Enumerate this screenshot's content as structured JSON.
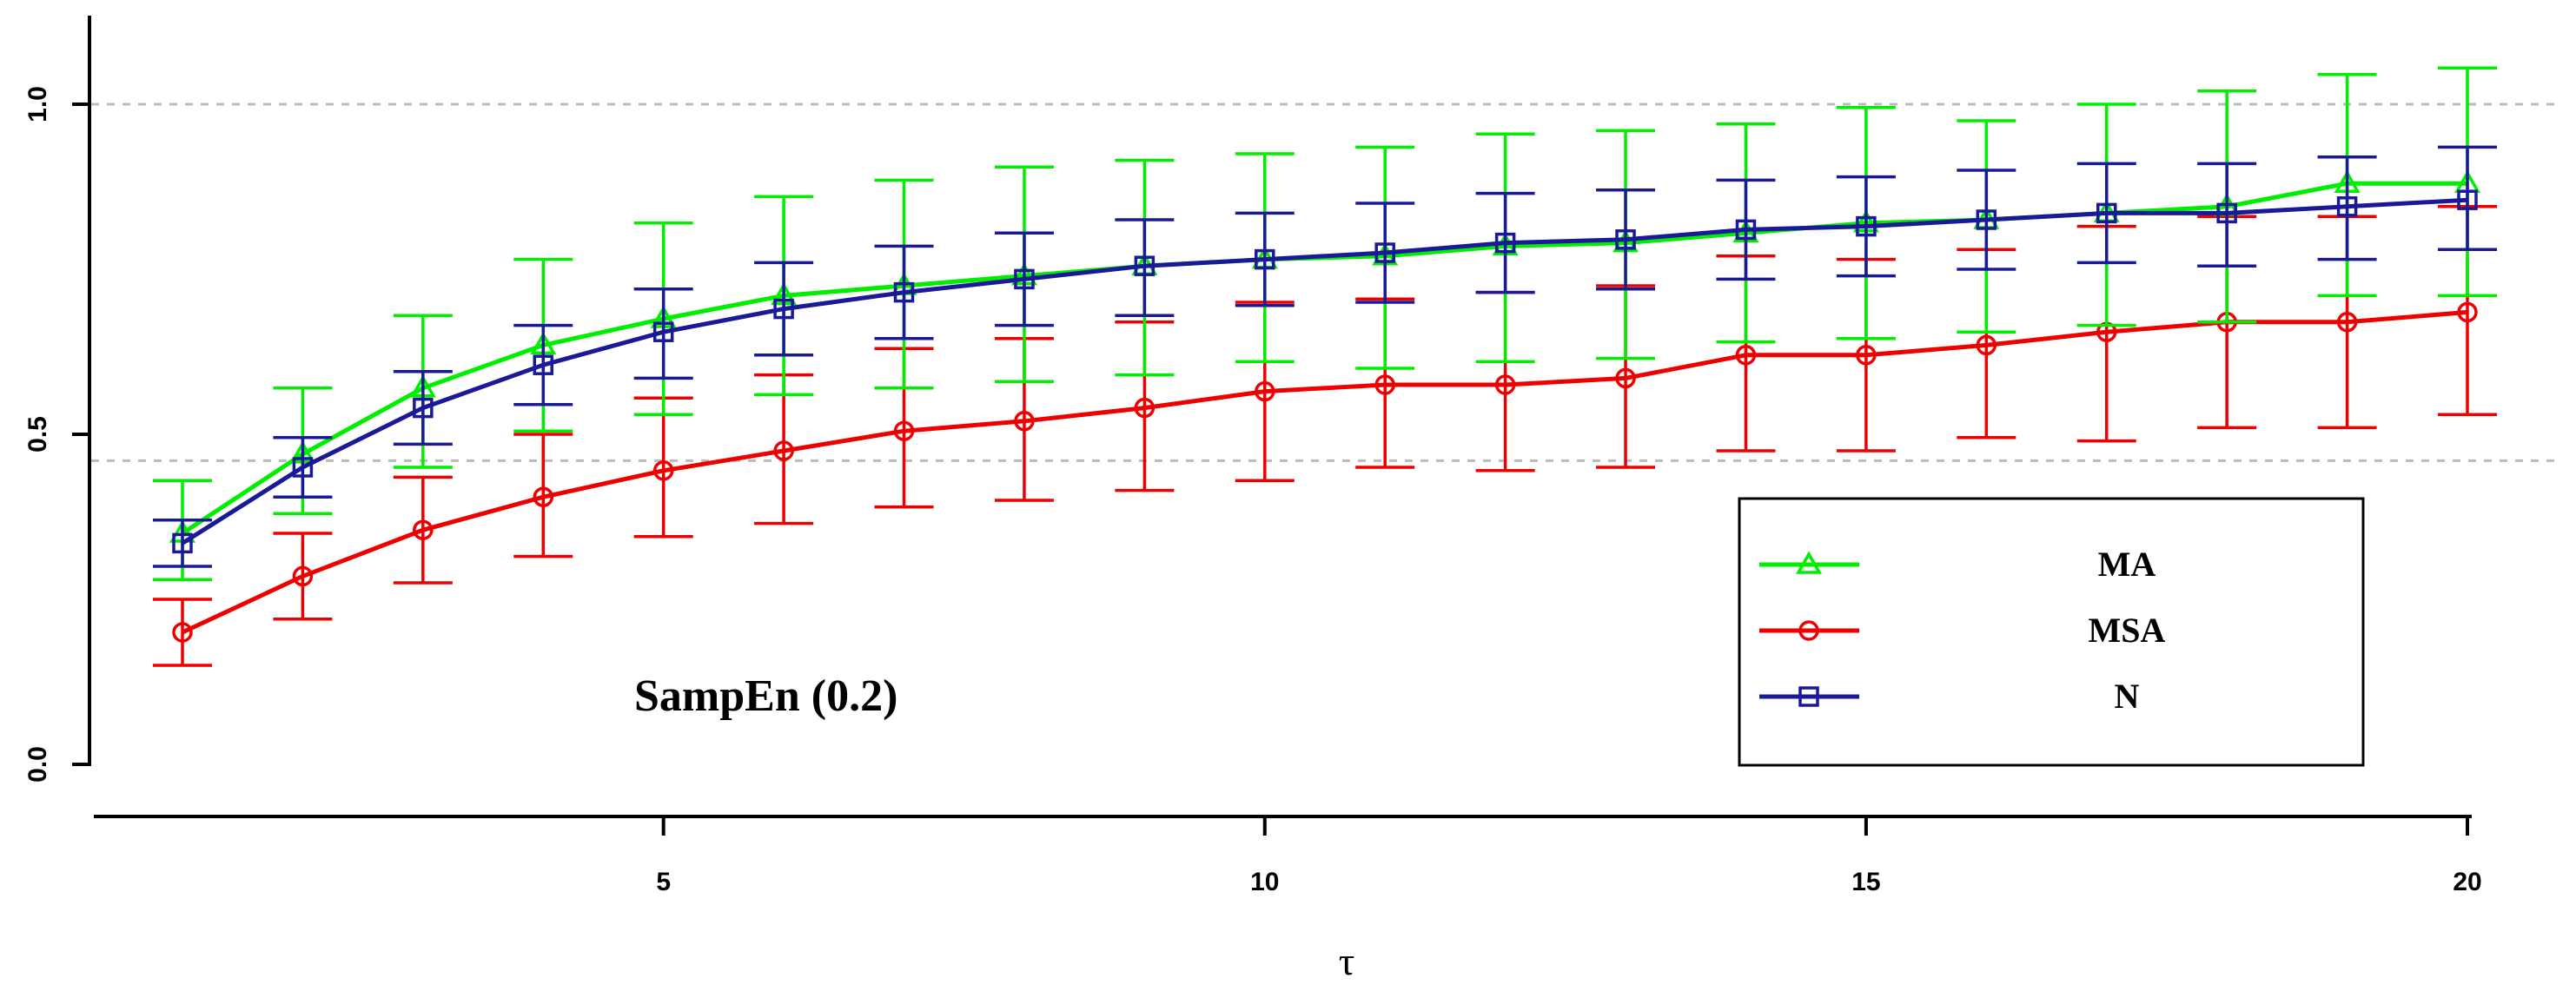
{
  "chart_data": {
    "type": "line",
    "title": "",
    "annotation": "SampEn (0.2)",
    "xlabel": "τ",
    "ylabel": "",
    "xlim": [
      0.2,
      20.2
    ],
    "ylim": [
      0.0,
      1.15
    ],
    "x_ticks": [
      "5",
      "10",
      "15",
      "20"
    ],
    "y_ticks": [
      "0.0",
      "0.5",
      "1.0"
    ],
    "reference_lines": [
      1.0,
      0.46
    ],
    "legend_position": "bottom-right",
    "x": [
      1,
      2,
      3,
      4,
      5,
      6,
      7,
      8,
      9,
      10,
      11,
      12,
      13,
      14,
      15,
      16,
      17,
      18,
      19,
      20
    ],
    "series": [
      {
        "name": "MA",
        "color": "#00ee00",
        "marker": "triangle",
        "values": [
          0.35,
          0.47,
          0.57,
          0.635,
          0.675,
          0.71,
          0.725,
          0.74,
          0.755,
          0.765,
          0.77,
          0.785,
          0.79,
          0.805,
          0.82,
          0.825,
          0.835,
          0.845,
          0.88,
          0.88
        ],
        "error_low": [
          0.28,
          0.38,
          0.45,
          0.505,
          0.53,
          0.56,
          0.57,
          0.58,
          0.59,
          0.61,
          0.6,
          0.61,
          0.615,
          0.64,
          0.645,
          0.655,
          0.665,
          0.67,
          0.71,
          0.71
        ],
        "error_high": [
          0.43,
          0.57,
          0.68,
          0.765,
          0.82,
          0.86,
          0.885,
          0.905,
          0.915,
          0.925,
          0.935,
          0.955,
          0.96,
          0.97,
          0.995,
          0.975,
          1.0,
          1.02,
          1.045,
          1.055
        ]
      },
      {
        "name": "MSA",
        "color": "#ee0000",
        "marker": "circle",
        "values": [
          0.2,
          0.285,
          0.355,
          0.405,
          0.445,
          0.475,
          0.505,
          0.52,
          0.54,
          0.565,
          0.575,
          0.575,
          0.585,
          0.62,
          0.62,
          0.635,
          0.655,
          0.67,
          0.67,
          0.685
        ],
        "error_low": [
          0.15,
          0.22,
          0.275,
          0.315,
          0.345,
          0.365,
          0.39,
          0.4,
          0.415,
          0.43,
          0.45,
          0.445,
          0.45,
          0.475,
          0.475,
          0.495,
          0.49,
          0.51,
          0.51,
          0.53
        ],
        "error_high": [
          0.25,
          0.35,
          0.435,
          0.5,
          0.555,
          0.59,
          0.63,
          0.645,
          0.67,
          0.7,
          0.705,
          0.715,
          0.725,
          0.77,
          0.765,
          0.78,
          0.815,
          0.83,
          0.83,
          0.845
        ]
      },
      {
        "name": "N",
        "color": "#1a1a99",
        "marker": "square",
        "values": [
          0.335,
          0.45,
          0.54,
          0.605,
          0.655,
          0.69,
          0.715,
          0.735,
          0.755,
          0.765,
          0.775,
          0.79,
          0.795,
          0.81,
          0.815,
          0.825,
          0.835,
          0.835,
          0.845,
          0.855
        ],
        "error_low": [
          0.3,
          0.405,
          0.485,
          0.545,
          0.585,
          0.62,
          0.645,
          0.665,
          0.68,
          0.695,
          0.7,
          0.715,
          0.72,
          0.735,
          0.74,
          0.75,
          0.76,
          0.755,
          0.765,
          0.78
        ],
        "error_high": [
          0.37,
          0.495,
          0.595,
          0.665,
          0.72,
          0.76,
          0.785,
          0.805,
          0.825,
          0.835,
          0.85,
          0.865,
          0.87,
          0.885,
          0.89,
          0.9,
          0.91,
          0.91,
          0.92,
          0.935
        ]
      }
    ]
  }
}
